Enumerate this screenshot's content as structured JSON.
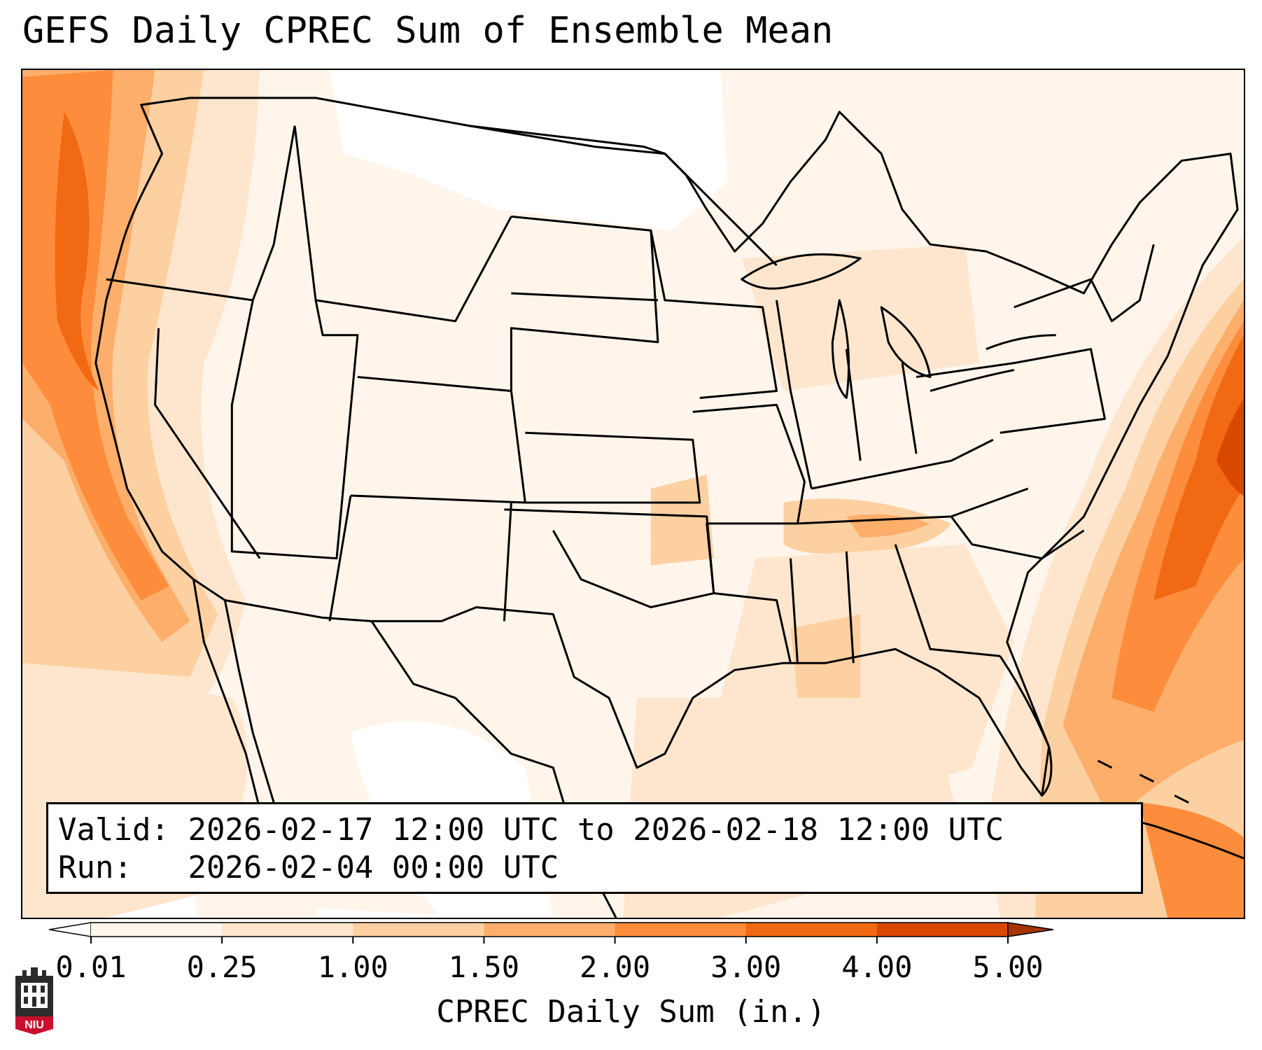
{
  "title": "GEFS Daily CPREC Sum of Ensemble Mean",
  "info": {
    "valid_label": "Valid:",
    "valid_value": "2026-02-17 12:00 UTC to 2026-02-18 12:00 UTC",
    "run_label": "Run:",
    "run_value": "2026-02-04 00:00 UTC"
  },
  "colorbar": {
    "label": "CPREC Daily Sum (in.)",
    "ticks": [
      "0.01",
      "0.25",
      "1.00",
      "1.50",
      "2.00",
      "3.00",
      "4.00",
      "5.00"
    ],
    "colors": [
      "#fff5eb",
      "#fee6ce",
      "#fdd0a2",
      "#fdae6b",
      "#fd8d3c",
      "#f16913",
      "#d94801",
      "#a63603"
    ],
    "under_color": "#ffffff",
    "over_color": "#a63603",
    "extend": "both"
  },
  "logo": {
    "text": "NIU",
    "icon": "niu-castle-logo-icon",
    "colors": {
      "dark": "#2b2b2b",
      "red": "#c8102e",
      "white": "#ffffff"
    }
  },
  "map": {
    "projection": "lambert-conformal",
    "region": "CONUS",
    "base_color": "#fff5eb",
    "precip_colors": {
      "trace": "#fff5eb",
      "light": "#fee6ce",
      "moderate": "#fdd0a2",
      "heavy": "#fdae6b",
      "very_heavy": "#fd8d3c",
      "extreme": "#f16913",
      "max": "#d94801"
    }
  }
}
